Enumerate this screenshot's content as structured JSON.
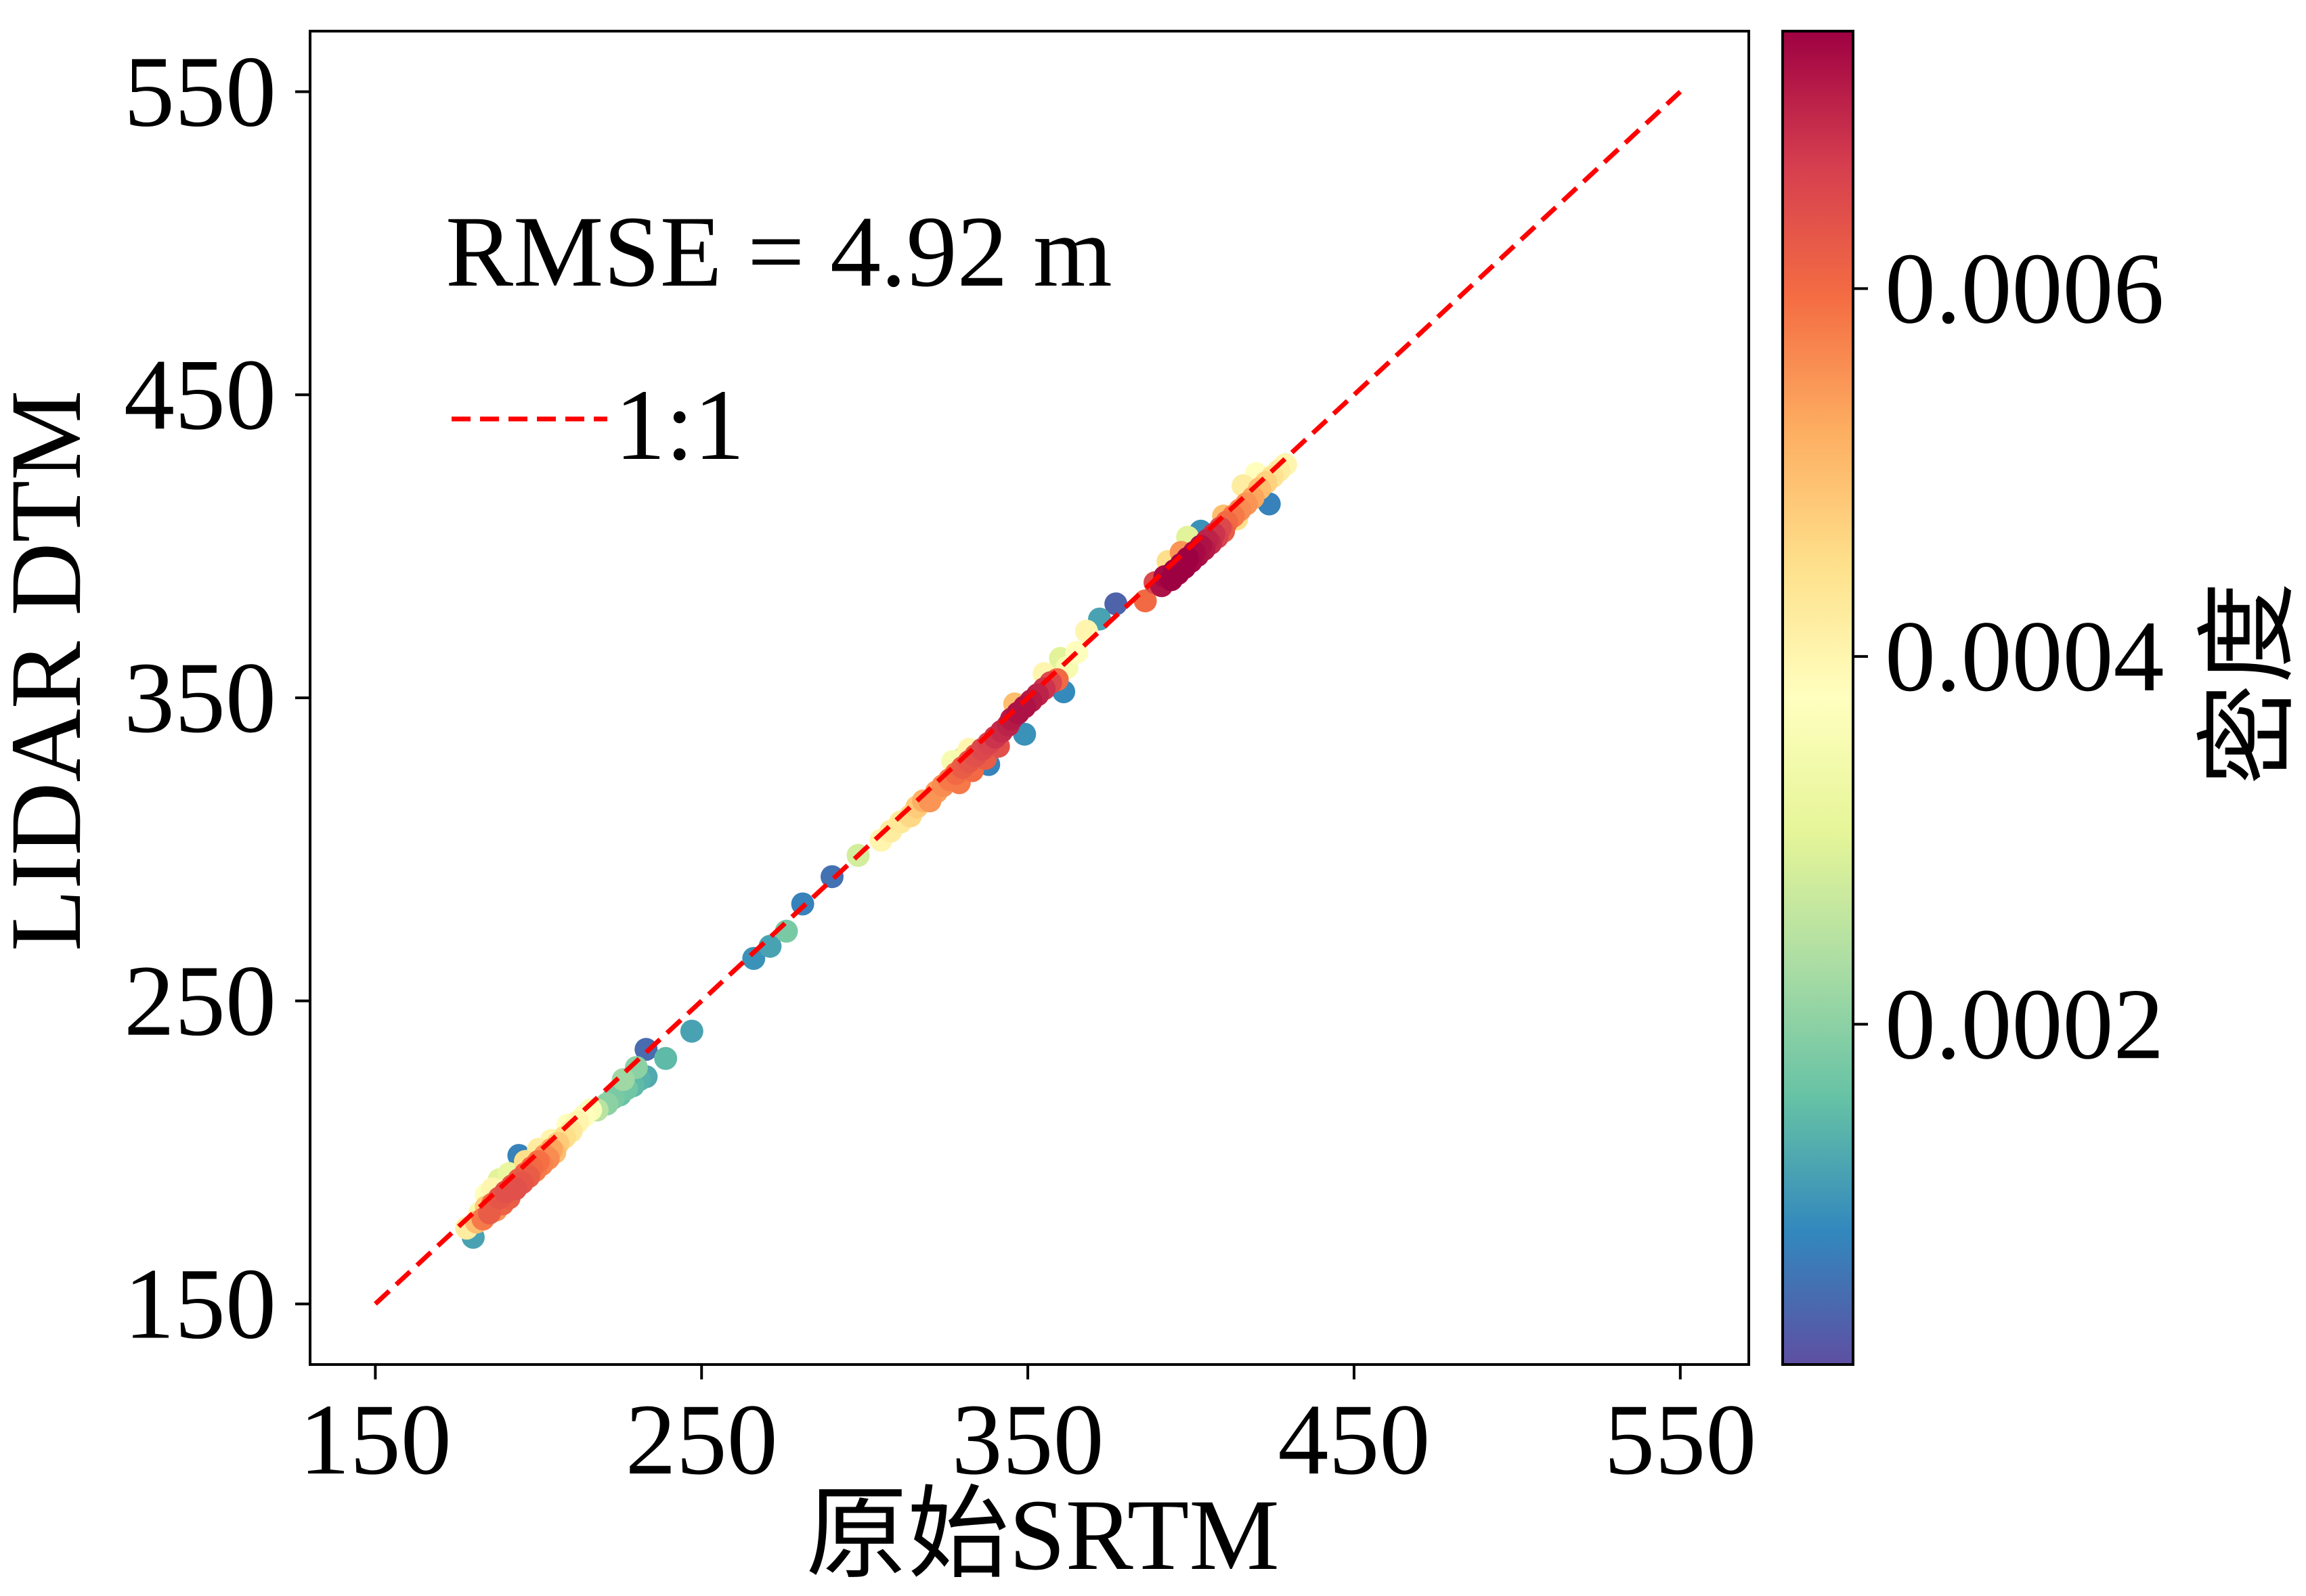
{
  "chart_data": {
    "type": "scatter",
    "xlabel": "原始SRTM",
    "ylabel": "LIDAR DTM",
    "xlim": [
      130,
      571
    ],
    "ylim": [
      130,
      570
    ],
    "xticks": [
      150,
      250,
      350,
      450,
      550
    ],
    "yticks": [
      150,
      250,
      350,
      450,
      550
    ],
    "grid": false,
    "annotation": "RMSE = 4.92 m",
    "legend": {
      "placement": "top-left",
      "entries": [
        "1:1"
      ]
    },
    "reference_line": {
      "from": [
        150,
        150
      ],
      "to": [
        550,
        550
      ],
      "color": "#ff0000",
      "style": "dashed"
    },
    "colorbar": {
      "label": "密度",
      "range": [
        1.5e-05,
        0.00074
      ],
      "ticks": [
        "0.0002",
        "0.0004",
        "0.0006"
      ],
      "colormap": [
        "#5e4fa2",
        "#3288bd",
        "#66c2a5",
        "#abdda4",
        "#e6f598",
        "#ffffbf",
        "#fee08b",
        "#fdae61",
        "#f46d43",
        "#d53e4f",
        "#9e0142"
      ]
    },
    "points": [
      [
        178,
        175,
        0.00042
      ],
      [
        180,
        172,
        0.00012
      ],
      [
        181,
        177,
        0.0005
      ],
      [
        182,
        180,
        0.00035
      ],
      [
        183,
        178,
        0.00058
      ],
      [
        184,
        182,
        0.00048
      ],
      [
        185,
        180,
        0.00062
      ],
      [
        186,
        183,
        0.0006
      ],
      [
        187,
        181,
        0.00055
      ],
      [
        188,
        185,
        0.00063
      ],
      [
        189,
        183,
        0.00061
      ],
      [
        190,
        187,
        0.00064
      ],
      [
        191,
        185,
        0.00062
      ],
      [
        192,
        189,
        0.00063
      ],
      [
        193,
        188,
        0.00064
      ],
      [
        194,
        191,
        0.00062
      ],
      [
        195,
        190,
        0.00063
      ],
      [
        196,
        193,
        0.00061
      ],
      [
        197,
        192,
        0.00062
      ],
      [
        198,
        195,
        0.0006
      ],
      [
        199,
        194,
        0.00058
      ],
      [
        200,
        197,
        0.00059
      ],
      [
        201,
        196,
        0.00057
      ],
      [
        202,
        199,
        0.00055
      ],
      [
        203,
        198,
        0.00056
      ],
      [
        204,
        201,
        0.00053
      ],
      [
        205,
        200,
        0.0005
      ],
      [
        206,
        203,
        0.00048
      ],
      [
        208,
        205,
        0.00045
      ],
      [
        210,
        207,
        0.00043
      ],
      [
        212,
        210,
        0.0004
      ],
      [
        214,
        212,
        0.00038
      ],
      [
        216,
        214,
        0.00036
      ],
      [
        188,
        191,
        0.0003
      ],
      [
        186,
        188,
        0.0004
      ],
      [
        194,
        199,
        8e-05
      ],
      [
        191,
        193,
        0.00032
      ],
      [
        184,
        186,
        0.00038
      ],
      [
        196,
        197,
        0.00045
      ],
      [
        200,
        201,
        0.00042
      ],
      [
        204,
        204,
        0.0004
      ],
      [
        209,
        209,
        0.00038
      ],
      [
        218,
        214,
        0.00025
      ],
      [
        221,
        216,
        0.0002
      ],
      [
        223,
        218,
        0.00018
      ],
      [
        225,
        219,
        0.00016
      ],
      [
        227,
        221,
        0.00017
      ],
      [
        229,
        222,
        0.00015
      ],
      [
        231,
        224,
        0.00014
      ],
      [
        233,
        225,
        0.00013
      ],
      [
        226,
        224,
        0.00022
      ],
      [
        230,
        228,
        0.0002
      ],
      [
        233,
        234,
        5e-05
      ],
      [
        239,
        231,
        0.00015
      ],
      [
        247,
        240,
        0.00012
      ],
      [
        266,
        264,
        0.0001
      ],
      [
        271,
        268,
        0.00012
      ],
      [
        276,
        273,
        0.00018
      ],
      [
        281,
        282,
        8e-05
      ],
      [
        290,
        291,
        6e-05
      ],
      [
        298,
        298,
        0.00028
      ],
      [
        305,
        303,
        0.0004
      ],
      [
        308,
        306,
        0.00042
      ],
      [
        311,
        309,
        0.00043
      ],
      [
        314,
        311,
        0.00046
      ],
      [
        316,
        314,
        0.00048
      ],
      [
        318,
        316,
        0.00052
      ],
      [
        320,
        316,
        0.00055
      ],
      [
        322,
        319,
        0.00054
      ],
      [
        324,
        321,
        0.00056
      ],
      [
        326,
        323,
        0.00058
      ],
      [
        328,
        325,
        0.0006
      ],
      [
        329,
        322,
        0.00058
      ],
      [
        330,
        327,
        0.00062
      ],
      [
        332,
        329,
        0.00063
      ],
      [
        333,
        326,
        0.0006
      ],
      [
        334,
        331,
        0.00064
      ],
      [
        336,
        333,
        0.00065
      ],
      [
        337,
        330,
        0.00062
      ],
      [
        338,
        335,
        0.00066
      ],
      [
        340,
        337,
        0.00068
      ],
      [
        341,
        334,
        0.00064
      ],
      [
        342,
        339,
        0.00069
      ],
      [
        344,
        341,
        0.0007
      ],
      [
        345,
        343,
        0.00071
      ],
      [
        347,
        345,
        0.00072
      ],
      [
        349,
        347,
        0.00072
      ],
      [
        351,
        349,
        0.00071
      ],
      [
        353,
        351,
        0.0007
      ],
      [
        355,
        353,
        0.00068
      ],
      [
        357,
        355,
        0.00065
      ],
      [
        359,
        356,
        0.0006
      ],
      [
        330,
        330,
        0.0003
      ],
      [
        327,
        329,
        0.00035
      ],
      [
        332,
        333,
        0.0004
      ],
      [
        338,
        328,
        8e-05
      ],
      [
        349,
        338,
        0.0001
      ],
      [
        361,
        352,
        9e-05
      ],
      [
        362,
        360,
        0.00035
      ],
      [
        365,
        365,
        0.00038
      ],
      [
        360,
        363,
        0.0003
      ],
      [
        355,
        358,
        0.0004
      ],
      [
        346,
        348,
        0.0005
      ],
      [
        368,
        372,
        0.0004
      ],
      [
        372,
        376,
        0.00012
      ],
      [
        377,
        381,
        4e-05
      ],
      [
        386,
        382,
        0.0006
      ],
      [
        389,
        388,
        0.00065
      ],
      [
        391,
        387,
        0.00072
      ],
      [
        392,
        390,
        0.00073
      ],
      [
        394,
        389,
        0.00074
      ],
      [
        395,
        392,
        0.00074
      ],
      [
        396,
        391,
        0.00074
      ],
      [
        397,
        394,
        0.00074
      ],
      [
        398,
        393,
        0.00074
      ],
      [
        399,
        396,
        0.00074
      ],
      [
        400,
        395,
        0.00073
      ],
      [
        401,
        398,
        0.00073
      ],
      [
        402,
        397,
        0.00072
      ],
      [
        403,
        400,
        0.00072
      ],
      [
        404,
        399,
        0.00071
      ],
      [
        405,
        402,
        0.0007
      ],
      [
        406,
        401,
        0.00069
      ],
      [
        407,
        404,
        0.00068
      ],
      [
        408,
        403,
        0.00066
      ],
      [
        409,
        406,
        0.00065
      ],
      [
        410,
        405,
        0.00062
      ],
      [
        411,
        408,
        0.0006
      ],
      [
        413,
        410,
        0.00058
      ],
      [
        415,
        412,
        0.00056
      ],
      [
        417,
        414,
        0.00055
      ],
      [
        419,
        416,
        0.00053
      ],
      [
        421,
        419,
        0.0005
      ],
      [
        423,
        421,
        0.00047
      ],
      [
        425,
        423,
        0.00044
      ],
      [
        427,
        425,
        0.00042
      ],
      [
        429,
        427,
        0.0004
      ],
      [
        403,
        405,
        0.0001
      ],
      [
        424,
        414,
        8e-05
      ],
      [
        420,
        424,
        0.00038
      ],
      [
        416,
        420,
        0.00042
      ],
      [
        414,
        409,
        0.00045
      ],
      [
        410,
        410,
        0.0005
      ],
      [
        397,
        398,
        0.00055
      ],
      [
        393,
        395,
        0.00045
      ],
      [
        399,
        403,
        0.0003
      ]
    ]
  }
}
